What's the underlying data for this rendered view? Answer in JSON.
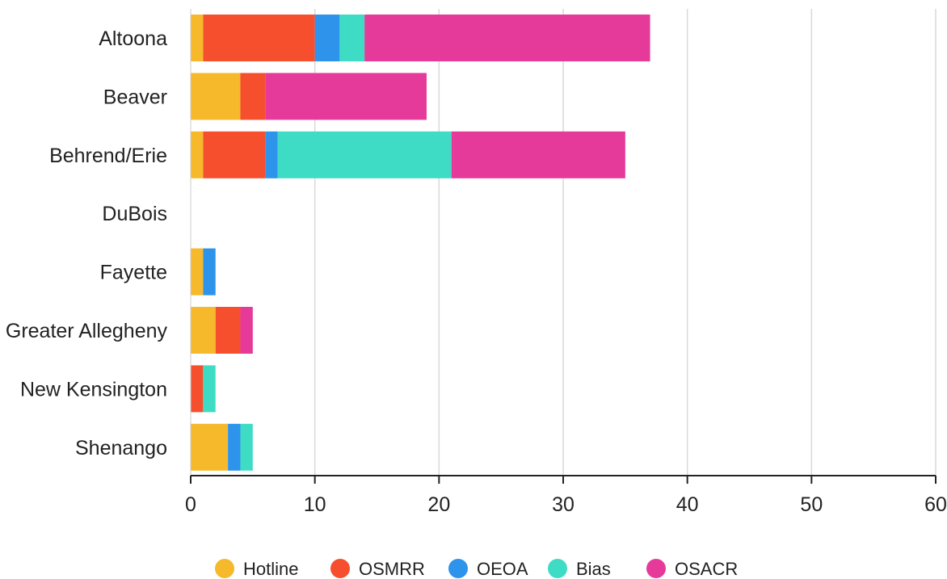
{
  "chart_data": {
    "type": "bar",
    "orientation": "horizontal",
    "stacked": true,
    "categories": [
      "Altoona",
      "Beaver",
      "Behrend/Erie",
      "DuBois",
      "Fayette",
      "Greater Allegheny",
      "New Kensington",
      "Shenango"
    ],
    "series": [
      {
        "name": "Hotline",
        "color": "#F6B92B",
        "values": [
          1,
          4,
          1,
          0,
          1,
          2,
          0,
          3
        ]
      },
      {
        "name": "OSMRR",
        "color": "#F64F2E",
        "values": [
          9,
          2,
          5,
          0,
          0,
          2,
          1,
          0
        ]
      },
      {
        "name": "OEOA",
        "color": "#2E93EA",
        "values": [
          2,
          0,
          1,
          0,
          1,
          0,
          0,
          1
        ]
      },
      {
        "name": "Bias",
        "color": "#3EDCC4",
        "values": [
          2,
          0,
          14,
          0,
          0,
          0,
          1,
          1
        ]
      },
      {
        "name": "OSACR",
        "color": "#E63A9A",
        "values": [
          23,
          13,
          14,
          0,
          0,
          1,
          0,
          0
        ]
      }
    ],
    "xlim": [
      0,
      60
    ],
    "xticks": [
      0,
      10,
      20,
      30,
      40,
      50,
      60
    ],
    "grid": true,
    "legend_position": "bottom",
    "title": "",
    "xlabel": "",
    "ylabel": ""
  }
}
